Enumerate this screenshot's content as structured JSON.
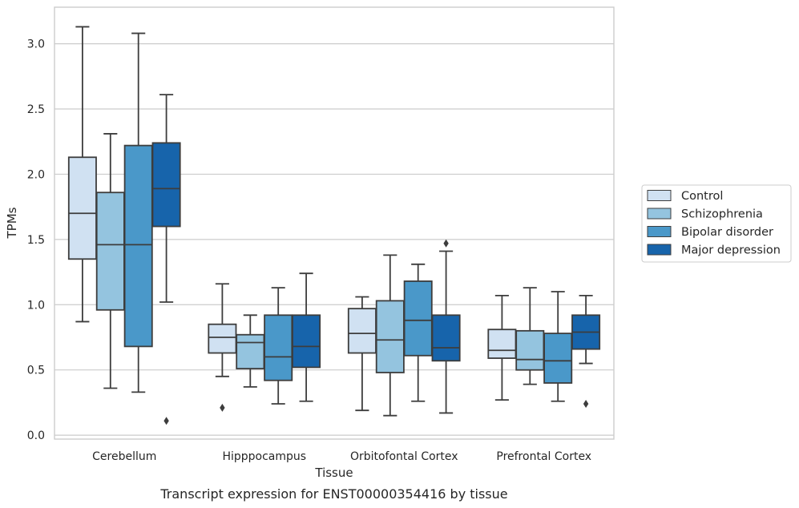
{
  "chart_data": {
    "type": "box",
    "title": "",
    "caption": "Transcript expression for ENST00000354416 by tissue",
    "xlabel": "Tissue",
    "ylabel": "TPMs",
    "ylim": [
      -0.03,
      3.28
    ],
    "yticks": [
      0.0,
      0.5,
      1.0,
      1.5,
      2.0,
      2.5,
      3.0
    ],
    "ytick_labels": [
      "0.0",
      "0.5",
      "1.0",
      "1.5",
      "2.0",
      "2.5",
      "3.0"
    ],
    "grid": "horizontal",
    "legend_position": "right",
    "categories": [
      "Cerebellum",
      "Hipppocampus",
      "Orbitofontal Cortex",
      "Prefrontal Cortex"
    ],
    "series": [
      {
        "name": "Control",
        "color": "#d0e1f2",
        "boxes": [
          {
            "whislo": 0.87,
            "q1": 1.35,
            "med": 1.7,
            "q3": 2.13,
            "whishi": 3.13,
            "fliers": []
          },
          {
            "whislo": 0.45,
            "q1": 0.63,
            "med": 0.75,
            "q3": 0.85,
            "whishi": 1.16,
            "fliers": [
              0.21
            ]
          },
          {
            "whislo": 0.19,
            "q1": 0.63,
            "med": 0.78,
            "q3": 0.97,
            "whishi": 1.06,
            "fliers": []
          },
          {
            "whislo": 0.27,
            "q1": 0.59,
            "med": 0.65,
            "q3": 0.81,
            "whishi": 1.07,
            "fliers": []
          }
        ]
      },
      {
        "name": "Schizophrenia",
        "color": "#94c4df",
        "boxes": [
          {
            "whislo": 0.36,
            "q1": 0.96,
            "med": 1.46,
            "q3": 1.86,
            "whishi": 2.31,
            "fliers": []
          },
          {
            "whislo": 0.37,
            "q1": 0.51,
            "med": 0.71,
            "q3": 0.77,
            "whishi": 0.92,
            "fliers": []
          },
          {
            "whislo": 0.15,
            "q1": 0.48,
            "med": 0.73,
            "q3": 1.03,
            "whishi": 1.38,
            "fliers": []
          },
          {
            "whislo": 0.39,
            "q1": 0.5,
            "med": 0.58,
            "q3": 0.8,
            "whishi": 1.13,
            "fliers": []
          }
        ]
      },
      {
        "name": "Bipolar disorder",
        "color": "#4a98c9",
        "boxes": [
          {
            "whislo": 0.33,
            "q1": 0.68,
            "med": 1.46,
            "q3": 2.22,
            "whishi": 3.08,
            "fliers": []
          },
          {
            "whislo": 0.24,
            "q1": 0.42,
            "med": 0.6,
            "q3": 0.92,
            "whishi": 1.13,
            "fliers": []
          },
          {
            "whislo": 0.26,
            "q1": 0.61,
            "med": 0.88,
            "q3": 1.18,
            "whishi": 1.31,
            "fliers": []
          },
          {
            "whislo": 0.26,
            "q1": 0.4,
            "med": 0.57,
            "q3": 0.78,
            "whishi": 1.1,
            "fliers": []
          }
        ]
      },
      {
        "name": "Major depression",
        "color": "#1764ab",
        "boxes": [
          {
            "whislo": 1.02,
            "q1": 1.6,
            "med": 1.89,
            "q3": 2.24,
            "whishi": 2.61,
            "fliers": [
              0.11
            ]
          },
          {
            "whislo": 0.26,
            "q1": 0.52,
            "med": 0.68,
            "q3": 0.92,
            "whishi": 1.24,
            "fliers": []
          },
          {
            "whislo": 0.17,
            "q1": 0.57,
            "med": 0.67,
            "q3": 0.92,
            "whishi": 1.41,
            "fliers": [
              1.47
            ]
          },
          {
            "whislo": 0.55,
            "q1": 0.66,
            "med": 0.79,
            "q3": 0.92,
            "whishi": 1.07,
            "fliers": [
              0.24
            ]
          }
        ]
      }
    ]
  }
}
